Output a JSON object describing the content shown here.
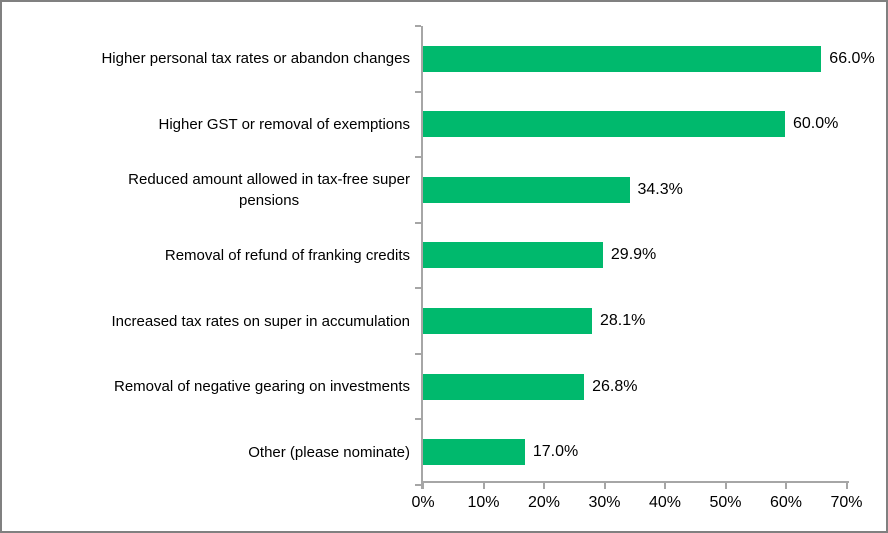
{
  "chart_data": {
    "type": "bar",
    "orientation": "horizontal",
    "title": "",
    "xlabel": "",
    "ylabel": "",
    "legend": "none",
    "grid": "off",
    "xlim": [
      0,
      70
    ],
    "categories": [
      "Higher personal tax rates or abandon changes",
      "Higher GST or removal of exemptions",
      "Reduced amount allowed in tax-free super\npensions",
      "Removal of refund of franking credits",
      "Increased tax rates on super in accumulation",
      "Removal of negative gearing on investments",
      "Other (please nominate)"
    ],
    "values": [
      66.0,
      60.0,
      34.3,
      29.9,
      28.1,
      26.8,
      17.0
    ],
    "value_labels": [
      "66.0%",
      "60.0%",
      "34.3%",
      "29.9%",
      "28.1%",
      "26.8%",
      "17.0%"
    ],
    "x_tick_labels": [
      "0%",
      "10%",
      "20%",
      "30%",
      "40%",
      "50%",
      "60%",
      "70%"
    ],
    "colors": {
      "bar": "#00B96D",
      "axis": "#A6A6A6",
      "text": "#000000",
      "frame_border": "#808080",
      "background": "#FFFFFF"
    }
  }
}
